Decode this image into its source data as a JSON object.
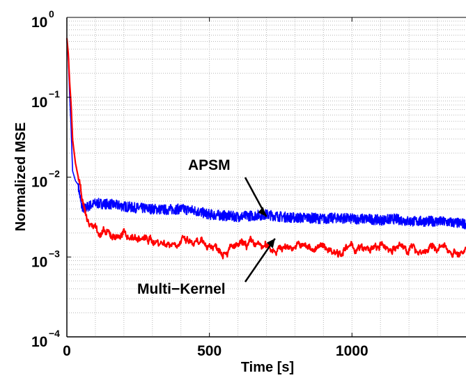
{
  "chart_data": {
    "type": "line",
    "title": "",
    "xlabel": "Time [s]",
    "ylabel": "Normalized MSE",
    "xlim": [
      0,
      1400
    ],
    "ylim": [
      0.0001,
      1
    ],
    "yscale": "log",
    "grid": true,
    "x_ticks": [
      0,
      500,
      1000
    ],
    "y_ticks": [
      {
        "value": 1,
        "base": "10",
        "exp": "0"
      },
      {
        "value": 0.1,
        "base": "10",
        "exp": "−1"
      },
      {
        "value": 0.01,
        "base": "10",
        "exp": "−2"
      },
      {
        "value": 0.001,
        "base": "10",
        "exp": "−3"
      },
      {
        "value": 0.0001,
        "base": "10",
        "exp": "−4"
      }
    ],
    "series": [
      {
        "name": "APSM",
        "color": "#0000ff",
        "x": [
          0,
          5,
          10,
          15,
          20,
          30,
          40,
          50,
          60,
          70,
          80,
          100,
          150,
          200,
          250,
          300,
          350,
          400,
          450,
          500,
          550,
          600,
          650,
          700,
          750,
          800,
          850,
          900,
          950,
          1000,
          1050,
          1100,
          1150,
          1200,
          1250,
          1300,
          1350,
          1400
        ],
        "y": [
          0.5,
          0.3,
          0.1,
          0.04,
          0.012,
          0.009,
          0.008,
          0.0045,
          0.004,
          0.0042,
          0.0044,
          0.0047,
          0.0046,
          0.0043,
          0.0041,
          0.004,
          0.0039,
          0.004,
          0.0038,
          0.0034,
          0.0033,
          0.0032,
          0.0033,
          0.0034,
          0.0032,
          0.0031,
          0.0031,
          0.003,
          0.0031,
          0.003,
          0.003,
          0.0029,
          0.003,
          0.0028,
          0.0028,
          0.0028,
          0.0027,
          0.0026
        ]
      },
      {
        "name": "Multi−Kernel",
        "color": "#ff0000",
        "x": [
          0,
          5,
          10,
          15,
          20,
          30,
          40,
          50,
          60,
          70,
          80,
          100,
          120,
          150,
          200,
          250,
          300,
          350,
          400,
          450,
          500,
          550,
          600,
          650,
          700,
          750,
          800,
          850,
          900,
          950,
          1000,
          1050,
          1100,
          1150,
          1200,
          1250,
          1300,
          1350,
          1400
        ],
        "y": [
          0.55,
          0.35,
          0.15,
          0.08,
          0.03,
          0.015,
          0.01,
          0.006,
          0.004,
          0.003,
          0.0025,
          0.0024,
          0.002,
          0.0018,
          0.0019,
          0.0017,
          0.0016,
          0.0015,
          0.0016,
          0.0014,
          0.0014,
          0.0013,
          0.0013,
          0.0014,
          0.0013,
          0.0013,
          0.0014,
          0.0013,
          0.0013,
          0.0012,
          0.0013,
          0.0012,
          0.0013,
          0.0013,
          0.0013,
          0.0012,
          0.0013,
          0.0012,
          0.0011
        ]
      }
    ],
    "annotations": [
      {
        "text": "APSM",
        "x": 700,
        "y": 0.0032
      },
      {
        "text": "Multi−Kernel",
        "x": 730,
        "y": 0.0017
      }
    ]
  }
}
